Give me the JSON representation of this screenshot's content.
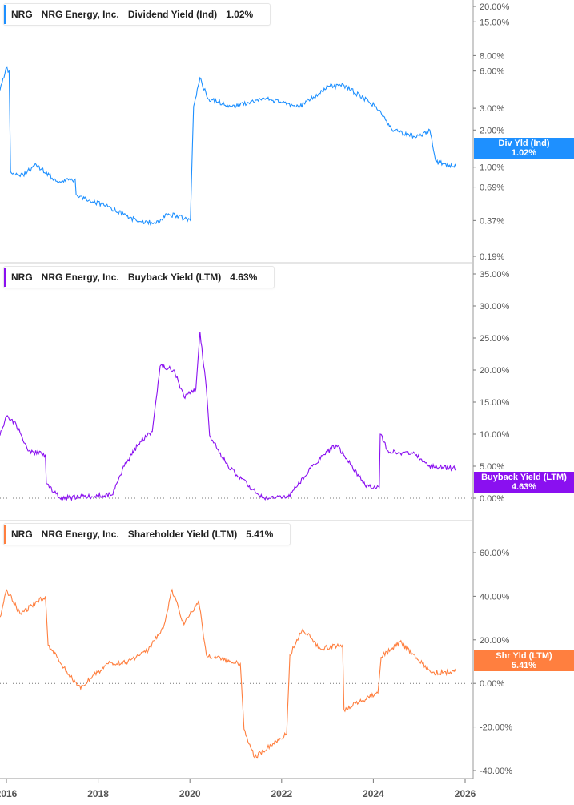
{
  "ticker": "NRG",
  "company": "NRG Energy, Inc.",
  "chart_data": [
    {
      "type": "line",
      "metric": "Dividend Yield (Ind)",
      "value_label": "1.02%",
      "tag_label": "Div Yld (Ind)",
      "color": "#1e90ff",
      "scale": "log",
      "y_ticks": [
        "20.00%",
        "15.00%",
        "8.00%",
        "6.00%",
        "3.00%",
        "2.00%",
        "1.00%",
        "0.69%",
        "0.37%",
        "0.19%"
      ],
      "y_tick_values": [
        20,
        15,
        8,
        6,
        3,
        2,
        1,
        0.69,
        0.37,
        0.19
      ],
      "ylim": [
        0.19,
        20
      ],
      "x": [
        2015.86,
        2015.99,
        2016.06,
        2016.09,
        2016.3,
        2016.65,
        2017.08,
        2017.5,
        2017.52,
        2018.13,
        2018.83,
        2019.26,
        2019.53,
        2020.01,
        2020.08,
        2020.22,
        2020.39,
        2020.92,
        2021.62,
        2022.4,
        2023.01,
        2023.36,
        2024.06,
        2024.41,
        2024.94,
        2025.23,
        2025.37,
        2025.8
      ],
      "y": [
        4.2,
        6.3,
        6.0,
        0.92,
        0.84,
        1.05,
        0.77,
        0.8,
        0.6,
        0.49,
        0.37,
        0.35,
        0.42,
        0.37,
        3.1,
        5.3,
        3.6,
        3.1,
        3.6,
        3.1,
        4.5,
        4.6,
        3.1,
        2.0,
        1.75,
        2.0,
        1.1,
        1.02
      ]
    },
    {
      "type": "line",
      "metric": "Buyback Yield (LTM)",
      "value_label": "4.63%",
      "tag_label": "Buyback Yield (LTM)",
      "color": "#8a10f0",
      "y_ticks": [
        "35.00%",
        "30.00%",
        "25.00%",
        "20.00%",
        "15.00%",
        "10.00%",
        "5.00%",
        "0.00%"
      ],
      "y_tick_values": [
        35,
        30,
        25,
        20,
        15,
        10,
        5,
        0
      ],
      "ylim": [
        0,
        35
      ],
      "x": [
        2015.86,
        2016.0,
        2016.21,
        2016.47,
        2016.85,
        2016.87,
        2017.17,
        2018.3,
        2018.57,
        2018.92,
        2019.18,
        2019.35,
        2019.66,
        2019.87,
        2020.13,
        2020.22,
        2020.36,
        2020.43,
        2020.83,
        2021.36,
        2021.62,
        2022.14,
        2022.35,
        2022.67,
        2022.93,
        2023.19,
        2023.54,
        2023.82,
        2024.13,
        2024.15,
        2024.32,
        2024.94,
        2025.2,
        2025.8
      ],
      "y": [
        9.8,
        12.8,
        11.6,
        7.4,
        6.8,
        2.3,
        0,
        0.5,
        5,
        8.9,
        10.4,
        20.6,
        20,
        15.8,
        17,
        26,
        17,
        9.8,
        5,
        1.4,
        0,
        0.2,
        2,
        5,
        6.8,
        8.3,
        5,
        2,
        1.7,
        10,
        7.4,
        6.8,
        5,
        4.63
      ]
    },
    {
      "type": "line",
      "metric": "Shareholder Yield (LTM)",
      "value_label": "5.41%",
      "tag_label": "Shr Yld (LTM)",
      "color": "#ff7f3f",
      "y_ticks": [
        "60.00%",
        "40.00%",
        "20.00%",
        "0.00%",
        "-20.00%",
        "-40.00%"
      ],
      "y_tick_values": [
        60,
        40,
        20,
        0,
        -20,
        -40
      ],
      "ylim": [
        -40,
        60
      ],
      "x": [
        2015.86,
        2016.0,
        2016.3,
        2016.85,
        2016.91,
        2017.4,
        2017.62,
        2017.87,
        2018.22,
        2018.65,
        2019.09,
        2019.44,
        2019.61,
        2019.87,
        2020.19,
        2020.36,
        2021.1,
        2021.18,
        2021.41,
        2022.11,
        2022.18,
        2022.46,
        2022.84,
        2023.33,
        2023.36,
        2024.1,
        2024.17,
        2024.58,
        2025.28,
        2025.8
      ],
      "y": [
        30.5,
        43,
        32,
        40,
        17.6,
        3,
        -2.6,
        3,
        9,
        10,
        15,
        27,
        43,
        27,
        38,
        13,
        9,
        -21,
        -34,
        -23,
        13,
        25,
        16,
        17.6,
        -12,
        -4.4,
        12,
        19,
        4.8,
        5.41
      ]
    }
  ],
  "x_ticks": [
    "2016",
    "2018",
    "2020",
    "2022",
    "2024",
    "2026"
  ],
  "x_tick_values": [
    2016,
    2018,
    2020,
    2022,
    2024,
    2026
  ]
}
